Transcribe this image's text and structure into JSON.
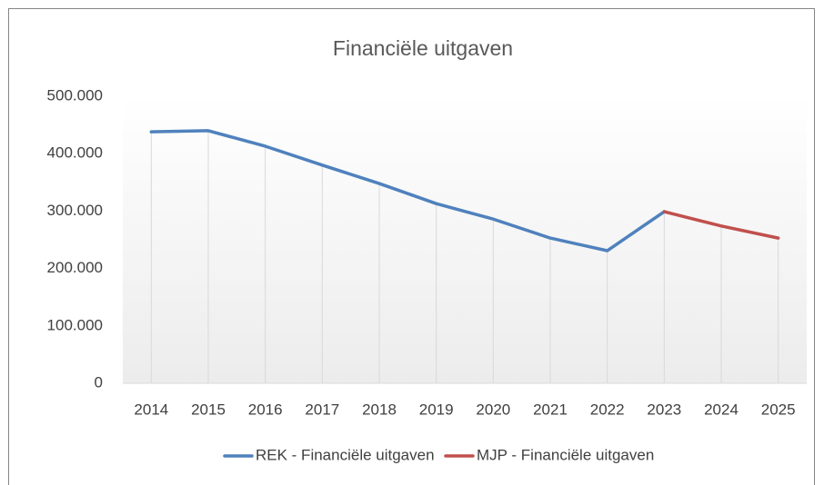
{
  "chart_data": {
    "type": "line",
    "title": "Financiële uitgaven",
    "categories": [
      "2014",
      "2015",
      "2016",
      "2017",
      "2018",
      "2019",
      "2020",
      "2021",
      "2022",
      "2023",
      "2024",
      "2025"
    ],
    "series": [
      {
        "name": "REK - Financiële uitgaven",
        "color": "#4f81bd",
        "values": [
          438000,
          440000,
          413000,
          380000,
          348000,
          313000,
          286000,
          253000,
          231000,
          299000,
          null,
          null
        ]
      },
      {
        "name": "MJP - Financiële uitgaven",
        "color": "#c0504d",
        "values": [
          null,
          null,
          null,
          null,
          null,
          null,
          null,
          null,
          null,
          299000,
          274000,
          253000
        ]
      }
    ],
    "ylim": [
      0,
      500000
    ],
    "yticks": [
      0,
      {
        "value": 100000,
        "label": "100.000"
      },
      {
        "value": 200000,
        "label": "200.000"
      },
      {
        "value": 300000,
        "label": "300.000"
      },
      {
        "value": 400000,
        "label": "400.000"
      },
      {
        "value": 500000,
        "label": "500.000"
      }
    ],
    "legend": "bottom",
    "drop_lines": true
  }
}
